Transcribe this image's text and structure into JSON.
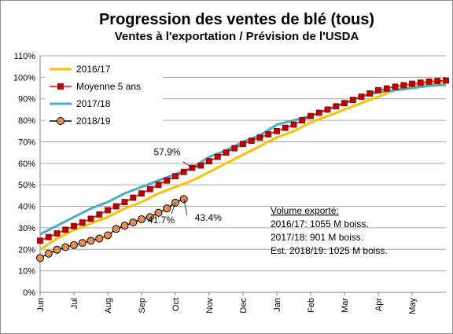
{
  "chart_data": {
    "type": "line",
    "title": "Progression des ventes de blé (tous)",
    "subtitle": "Ventes à l'exportation / Prévision de l'USDA",
    "xlabel": "",
    "ylabel": "",
    "ylim": [
      0,
      110
    ],
    "yticks": [
      "0%",
      "10%",
      "20%",
      "30%",
      "40%",
      "50%",
      "60%",
      "70%",
      "80%",
      "90%",
      "100%",
      "110%"
    ],
    "xticks": [
      "Jun",
      "Jul",
      "Aug",
      "Sep",
      "Oct",
      "Nov",
      "Dec",
      "Jan",
      "Feb",
      "Mar",
      "Apr",
      "May"
    ],
    "x_range": [
      0,
      12
    ],
    "grid": "horizontal",
    "legend_position": "top-left",
    "series": [
      {
        "name": "2016/17",
        "color": "#ffc000",
        "marker": "none",
        "points": [
          [
            0,
            20
          ],
          [
            0.5,
            25
          ],
          [
            1,
            29
          ],
          [
            1.5,
            32
          ],
          [
            2,
            35
          ],
          [
            2.5,
            39
          ],
          [
            3,
            42
          ],
          [
            3.5,
            46
          ],
          [
            4,
            49
          ],
          [
            4.5,
            52
          ],
          [
            5,
            56
          ],
          [
            5.5,
            60
          ],
          [
            6,
            64
          ],
          [
            6.5,
            68
          ],
          [
            7,
            72
          ],
          [
            7.5,
            75
          ],
          [
            8,
            79
          ],
          [
            8.5,
            82
          ],
          [
            9,
            85
          ],
          [
            9.5,
            88
          ],
          [
            10,
            91
          ],
          [
            10.5,
            94
          ],
          [
            11,
            96
          ],
          [
            11.5,
            97
          ],
          [
            12,
            98
          ]
        ]
      },
      {
        "name": "Moyenne 5 ans",
        "color": "#ff0000",
        "marker": "square",
        "marker_fill": "#c00000",
        "points": [
          [
            0,
            24
          ],
          [
            0.25,
            25.7
          ],
          [
            0.5,
            27.4
          ],
          [
            0.75,
            29.1
          ],
          [
            1,
            30.8
          ],
          [
            1.25,
            32.5
          ],
          [
            1.5,
            34.2
          ],
          [
            1.75,
            36.2
          ],
          [
            2,
            38.2
          ],
          [
            2.25,
            40
          ],
          [
            2.5,
            42
          ],
          [
            2.75,
            44
          ],
          [
            3,
            46
          ],
          [
            3.25,
            48
          ],
          [
            3.5,
            50
          ],
          [
            3.75,
            52
          ],
          [
            4,
            54
          ],
          [
            4.25,
            56
          ],
          [
            4.5,
            57.9
          ],
          [
            4.75,
            59
          ],
          [
            5,
            61
          ],
          [
            5.25,
            63
          ],
          [
            5.5,
            65
          ],
          [
            5.75,
            67
          ],
          [
            6,
            69
          ],
          [
            6.25,
            70.5
          ],
          [
            6.5,
            72
          ],
          [
            6.75,
            73.5
          ],
          [
            7,
            75
          ],
          [
            7.25,
            76.5
          ],
          [
            7.5,
            78
          ],
          [
            7.75,
            80
          ],
          [
            8,
            82
          ],
          [
            8.25,
            83.5
          ],
          [
            8.5,
            85
          ],
          [
            8.75,
            86.5
          ],
          [
            9,
            88
          ],
          [
            9.25,
            89.5
          ],
          [
            9.5,
            91
          ],
          [
            9.75,
            92.5
          ],
          [
            10,
            94
          ],
          [
            10.25,
            94.8
          ],
          [
            10.5,
            95.6
          ],
          [
            10.75,
            96.3
          ],
          [
            11,
            97
          ],
          [
            11.25,
            97.5
          ],
          [
            11.5,
            98
          ],
          [
            11.75,
            98.3
          ],
          [
            12,
            98.5
          ]
        ]
      },
      {
        "name": "2017/18",
        "color": "#4aacc6",
        "marker": "none",
        "points": [
          [
            0,
            27
          ],
          [
            0.5,
            31
          ],
          [
            1,
            35
          ],
          [
            1.5,
            39
          ],
          [
            2,
            42
          ],
          [
            2.5,
            46
          ],
          [
            3,
            49
          ],
          [
            3.5,
            52
          ],
          [
            4,
            55
          ],
          [
            4.5,
            57.9
          ],
          [
            5,
            63
          ],
          [
            5.5,
            66
          ],
          [
            6,
            70
          ],
          [
            6.5,
            73
          ],
          [
            7,
            78
          ],
          [
            7.5,
            80
          ],
          [
            8,
            82
          ],
          [
            8.5,
            85
          ],
          [
            9,
            88
          ],
          [
            9.5,
            91
          ],
          [
            10,
            93
          ],
          [
            10.5,
            94
          ],
          [
            11,
            95
          ],
          [
            11.5,
            96
          ],
          [
            12,
            96.5
          ]
        ]
      },
      {
        "name": "2018/19",
        "color": "#000000",
        "marker": "circle",
        "marker_fill": "#e6904e",
        "points": [
          [
            0,
            16
          ],
          [
            0.25,
            18
          ],
          [
            0.5,
            19.8
          ],
          [
            0.75,
            21
          ],
          [
            1,
            22
          ],
          [
            1.25,
            23
          ],
          [
            1.5,
            24
          ],
          [
            1.75,
            25
          ],
          [
            2,
            26.5
          ],
          [
            2.25,
            29.5
          ],
          [
            2.5,
            31
          ],
          [
            2.75,
            32.5
          ],
          [
            3,
            34
          ],
          [
            3.25,
            35
          ],
          [
            3.5,
            37
          ],
          [
            3.75,
            39
          ],
          [
            4,
            41.7
          ],
          [
            4.25,
            43.4
          ]
        ]
      }
    ],
    "annotations": [
      {
        "text": "57.9%",
        "x": 4.5,
        "y": 57.9
      },
      {
        "text": "41.7%",
        "x": 4.0,
        "y": 41.7
      },
      {
        "text": "43.4%",
        "x": 4.25,
        "y": 43.4
      }
    ],
    "textbox": {
      "title": "Volume exporté:",
      "lines": [
        "2016/17: 1055 M boiss.",
        "2017/18: 901 M boiss.",
        "Est. 2018/19: 1025 M boiss."
      ]
    }
  }
}
